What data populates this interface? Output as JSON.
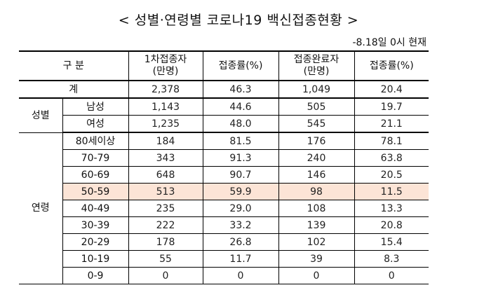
{
  "title": "< 성별·연령별 코로나19 백신접종현황 >",
  "date_note": "-8.18일 0시 현재",
  "headers": {
    "category": "구 분",
    "first_dose_line1": "1차접종자",
    "first_dose_line2": "(만명)",
    "first_rate": "접종률(%)",
    "full_dose_line1": "접종완료자",
    "full_dose_line2": "(만명)",
    "full_rate": "접종률(%)"
  },
  "total": {
    "label": "계",
    "first": "2,378",
    "first_rate": "46.3",
    "full": "1,049",
    "full_rate": "20.4"
  },
  "sex": {
    "group_label": "성별",
    "rows": [
      {
        "label": "남성",
        "first": "1,143",
        "first_rate": "44.6",
        "full": "505",
        "full_rate": "19.7"
      },
      {
        "label": "여성",
        "first": "1,235",
        "first_rate": "48.0",
        "full": "545",
        "full_rate": "21.1"
      }
    ]
  },
  "age": {
    "group_label": "연령",
    "rows": [
      {
        "label": "80세이상",
        "first": "184",
        "first_rate": "81.5",
        "full": "176",
        "full_rate": "78.1"
      },
      {
        "label": "70-79",
        "first": "343",
        "first_rate": "91.3",
        "full": "240",
        "full_rate": "63.8"
      },
      {
        "label": "60-69",
        "first": "648",
        "first_rate": "90.7",
        "full": "146",
        "full_rate": "20.5"
      },
      {
        "label": "50-59",
        "first": "513",
        "first_rate": "59.9",
        "full": "98",
        "full_rate": "11.5"
      },
      {
        "label": "40-49",
        "first": "235",
        "first_rate": "29.0",
        "full": "108",
        "full_rate": "13.3"
      },
      {
        "label": "30-39",
        "first": "222",
        "first_rate": "33.2",
        "full": "139",
        "full_rate": "20.8"
      },
      {
        "label": "20-29",
        "first": "178",
        "first_rate": "26.8",
        "full": "102",
        "full_rate": "15.4"
      },
      {
        "label": "10-19",
        "first": "55",
        "first_rate": "11.7",
        "full": "39",
        "full_rate": "8.3"
      },
      {
        "label": "0-9",
        "first": "0",
        "first_rate": "0",
        "full": "0",
        "full_rate": "0"
      }
    ]
  },
  "highlight_row": "50-59",
  "highlight_color": "#fce4d6"
}
